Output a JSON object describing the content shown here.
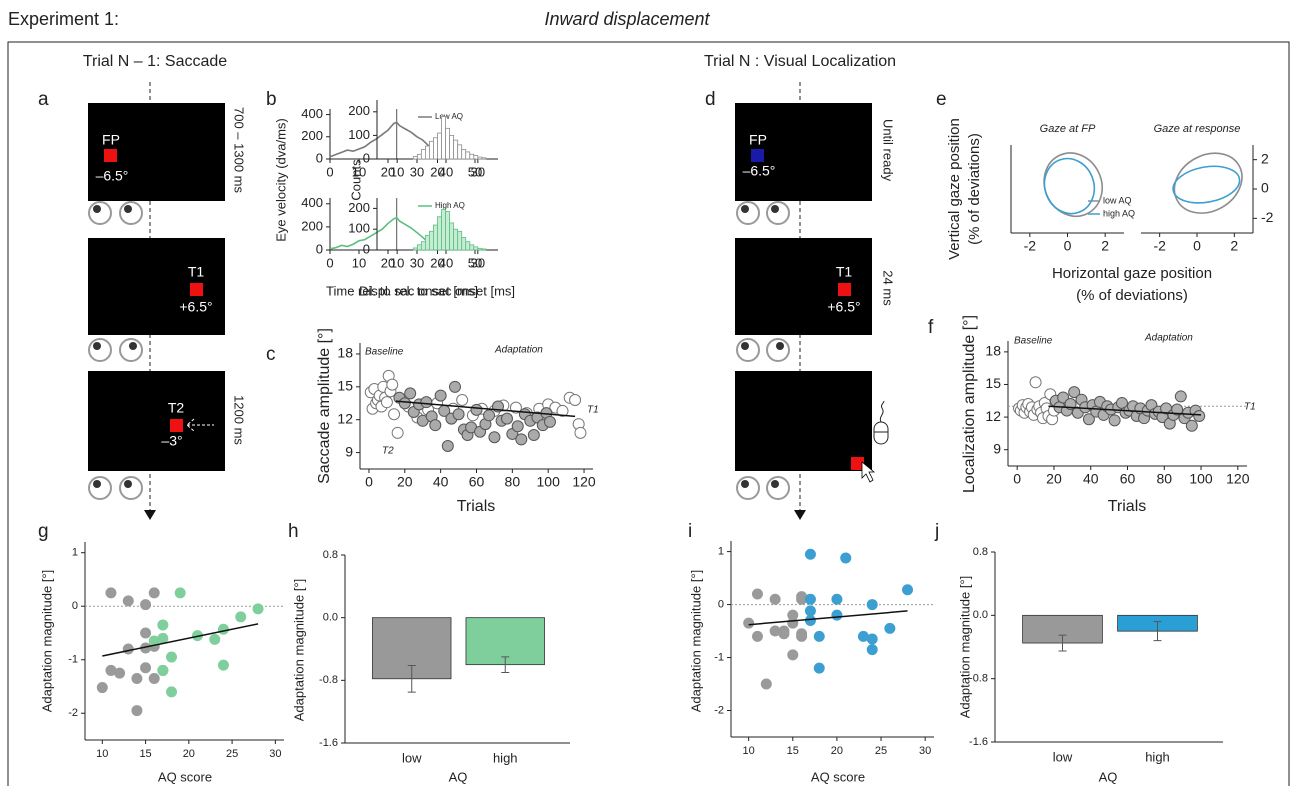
{
  "header": {
    "experiment": "Experiment 1:",
    "condition": "Inward displacement"
  },
  "trials": {
    "saccade": "Trial N – 1: Saccade",
    "localization": "Trial N : Visual Localization"
  },
  "panel_letters": [
    "a",
    "b",
    "c",
    "d",
    "e",
    "f",
    "g",
    "h",
    "i",
    "j"
  ],
  "display_a": {
    "labels": [
      "FP",
      "–6.5°",
      "T1",
      "+6.5°",
      "T2",
      "–3°"
    ],
    "timing": [
      "700 – 1300 ms",
      "1200 ms"
    ]
  },
  "display_d": {
    "labels": [
      "FP",
      "–6.5°",
      "T1",
      "+6.5°"
    ],
    "timing": [
      "Until ready",
      "24 ms"
    ]
  },
  "chart_data": [
    {
      "type": "line",
      "ylabel": "Eye velocity (dva/ms)",
      "xlim": [
        0,
        50
      ],
      "xticks": [
        0,
        10,
        20,
        30,
        40,
        50
      ],
      "ylim": [
        0,
        450
      ],
      "yticks": [
        0,
        200,
        400
      ],
      "vline": 23,
      "series": [
        {
          "name": "Low AQ",
          "color": "#7a7a7a",
          "x": [
            0,
            2,
            4,
            6,
            8,
            10,
            12,
            14,
            16,
            18,
            20,
            22,
            23,
            24,
            26,
            28,
            30,
            32,
            34,
            36,
            38,
            40
          ],
          "values": [
            20,
            40,
            60,
            80,
            70,
            90,
            110,
            150,
            180,
            220,
            260,
            320,
            330,
            300,
            270,
            240,
            200,
            170,
            120,
            80,
            40,
            20
          ]
        }
      ]
    },
    {
      "type": "line",
      "xlabel": "Time rel. to sac onset [ms]",
      "xlim": [
        0,
        50
      ],
      "xticks": [
        0,
        10,
        20,
        30,
        40,
        50
      ],
      "ylim": [
        0,
        450
      ],
      "yticks": [
        0,
        200,
        400
      ],
      "vline": 23,
      "series": [
        {
          "name": "High AQ",
          "color": "#5cbf80",
          "x": [
            0,
            2,
            4,
            6,
            8,
            10,
            12,
            14,
            16,
            18,
            20,
            22,
            23,
            24,
            26,
            28,
            30,
            32,
            34,
            36,
            38,
            40
          ],
          "values": [
            10,
            20,
            40,
            30,
            50,
            80,
            90,
            120,
            150,
            180,
            230,
            270,
            280,
            250,
            220,
            190,
            150,
            110,
            60,
            30,
            20,
            10
          ]
        }
      ]
    },
    {
      "type": "histogram",
      "ylabel": "Counts",
      "xlim": [
        5,
        35
      ],
      "xticks": [
        10,
        20,
        30
      ],
      "ylim": [
        0,
        250
      ],
      "yticks": [
        0,
        100,
        200
      ],
      "color": "#8c8c8c",
      "fill": "#ffffff",
      "bins": [
        14,
        15,
        16,
        17,
        18,
        19,
        20,
        21,
        22,
        23,
        24,
        25,
        26,
        27,
        28,
        29,
        30,
        31,
        32
      ],
      "counts": [
        10,
        20,
        40,
        55,
        75,
        90,
        110,
        180,
        130,
        100,
        80,
        60,
        40,
        30,
        20,
        15,
        8,
        5
      ]
    },
    {
      "type": "histogram",
      "xlabel": "Displ. rel. to sac onset [ms]",
      "xlim": [
        5,
        35
      ],
      "xticks": [
        10,
        20,
        30
      ],
      "ylim": [
        0,
        250
      ],
      "yticks": [
        0,
        100,
        200
      ],
      "color": "#5cbf80",
      "fill": "#c6ecd3",
      "bins": [
        14,
        15,
        16,
        17,
        18,
        19,
        20,
        21,
        22,
        23,
        24,
        25,
        26,
        27,
        28,
        29,
        30,
        31,
        32
      ],
      "counts": [
        10,
        25,
        40,
        70,
        90,
        120,
        160,
        195,
        185,
        130,
        100,
        90,
        60,
        40,
        25,
        15,
        8,
        5
      ]
    },
    {
      "type": "scatter",
      "ylabel": "Saccade amplitude [°]",
      "xlabel": "Trials",
      "xlim": [
        -5,
        125
      ],
      "xticks": [
        0,
        20,
        40,
        60,
        80,
        100,
        120
      ],
      "ylim": [
        7.5,
        19
      ],
      "yticks": [
        9,
        12,
        15,
        18
      ],
      "annotations": [
        "Baseline",
        "Adaptation",
        "T1",
        "T2"
      ],
      "fit": {
        "x": [
          15,
          115
        ],
        "values": [
          13.7,
          12.3
        ]
      },
      "series": [
        {
          "color": "#777777",
          "fill": "#ffffff",
          "x": [
            1,
            2,
            3,
            4,
            5,
            6,
            7,
            8,
            9,
            10,
            11,
            12,
            13,
            14,
            16,
            22,
            27,
            33,
            38,
            47,
            52,
            58,
            63,
            70,
            75,
            82,
            88,
            95,
            100,
            104,
            108,
            112,
            115,
            117,
            118
          ],
          "values": [
            14.5,
            13,
            14.8,
            13.5,
            13.8,
            14.2,
            13.2,
            15,
            14,
            13.6,
            16,
            14.6,
            15.2,
            12.5,
            10.8,
            13.2,
            12.2,
            12.9,
            13.5,
            13,
            13.8,
            12.4,
            13,
            12.8,
            13.3,
            13.1,
            12.6,
            13,
            13.4,
            13.1,
            12.8,
            14,
            13.8,
            11.6,
            10.8
          ]
        },
        {
          "color": "#555555",
          "fill": "#aaaaaa",
          "x": [
            17,
            20,
            23,
            25,
            28,
            30,
            32,
            35,
            37,
            40,
            42,
            44,
            46,
            48,
            50,
            53,
            55,
            57,
            60,
            62,
            65,
            67,
            70,
            72,
            74,
            77,
            80,
            83,
            85,
            87,
            90,
            92,
            94,
            97,
            99,
            101
          ],
          "values": [
            14,
            13.5,
            14.4,
            12.7,
            13.4,
            11.9,
            13.6,
            12.3,
            11.5,
            14.2,
            12.8,
            9.6,
            12.1,
            15,
            12.5,
            11.1,
            10.6,
            11.3,
            12.9,
            10.9,
            11.6,
            12.4,
            10.4,
            13.2,
            11.9,
            12.1,
            10.7,
            11.4,
            10.2,
            12.5,
            11.9,
            10.6,
            12.2,
            11.5,
            12.6,
            11.8
          ]
        }
      ]
    },
    {
      "type": "ellipse",
      "title": "Gaze at FP",
      "ylabel": [
        "Vertical gaze position",
        "(% of deviations)"
      ],
      "xlabel": [
        "Horizontal gaze position",
        "(% of deviations)"
      ],
      "xlim": [
        -3,
        3
      ],
      "xticks": [
        -2,
        0,
        2
      ],
      "ylim": [
        -3,
        3
      ],
      "yticks": [],
      "series": [
        {
          "name": "low AQ",
          "color": "#8c8c8c",
          "values": [
            0.3,
            0.3,
            1.5,
            2.2
          ],
          "angle": -25
        },
        {
          "name": "high AQ",
          "color": "#3c9fd1",
          "values": [
            0.1,
            0.2,
            1.3,
            1.9
          ],
          "angle": -20
        }
      ]
    },
    {
      "type": "ellipse",
      "title": "Gaze at response",
      "y_side": "right",
      "xlim": [
        -3,
        3
      ],
      "xticks": [
        -2,
        0,
        2
      ],
      "ylim": [
        -3,
        3
      ],
      "yticks": [
        -2,
        0,
        2
      ],
      "series": [
        {
          "color": "#8c8c8c",
          "values": [
            0.6,
            0.4,
            1.9,
            1.9
          ],
          "angle": -30
        },
        {
          "color": "#3c9fd1",
          "values": [
            0.5,
            0.3,
            1.8,
            1.2
          ],
          "angle": -10
        }
      ]
    },
    {
      "type": "scatter",
      "ylabel": "Localization amplitude [°]",
      "xlabel": "Trials",
      "xlim": [
        -5,
        125
      ],
      "xticks": [
        0,
        20,
        40,
        60,
        80,
        100,
        120
      ],
      "ylim": [
        7.5,
        19
      ],
      "yticks": [
        9,
        12,
        15,
        18
      ],
      "annotations": [
        "Baseline",
        "Adaptation",
        "T1"
      ],
      "hline": 13,
      "fit": {
        "x": [
          17,
          100
        ],
        "values": [
          13,
          12.2
        ]
      },
      "series": [
        {
          "color": "#777777",
          "fill": "#ffffff",
          "x": [
            1,
            2,
            3,
            4,
            5,
            6,
            7,
            8,
            9,
            10,
            11,
            12,
            13,
            14,
            15,
            16,
            17,
            18,
            19,
            20
          ],
          "values": [
            12.8,
            12.6,
            13.1,
            12.4,
            12.9,
            13.2,
            12.5,
            12.9,
            12.2,
            15.2,
            12.7,
            13,
            12.4,
            11.9,
            13.3,
            12.8,
            12.1,
            14.1,
            11.8,
            12.6
          ]
        },
        {
          "color": "#555555",
          "fill": "#b0b0b0",
          "x": [
            21,
            23,
            25,
            27,
            29,
            31,
            33,
            35,
            37,
            39,
            41,
            43,
            45,
            47,
            49,
            51,
            53,
            55,
            57,
            59,
            61,
            63,
            65,
            67,
            69,
            71,
            73,
            75,
            77,
            79,
            81,
            83,
            85,
            87,
            89,
            91,
            93,
            95,
            97,
            99
          ],
          "values": [
            13.5,
            12.9,
            13.8,
            12.6,
            13.2,
            14.3,
            12.4,
            13.6,
            12.9,
            11.8,
            13.1,
            12.5,
            13.4,
            12.2,
            13,
            12.7,
            11.7,
            12.9,
            13.3,
            12.4,
            12.6,
            13,
            12.1,
            12.8,
            11.9,
            12.6,
            13.1,
            12.3,
            12.5,
            12,
            12.8,
            11.4,
            12.2,
            12.7,
            13.9,
            11.9,
            12.4,
            11.2,
            12.6,
            12.1
          ]
        }
      ]
    },
    {
      "type": "scatter",
      "ylabel": "Adaptation magnitude [°]",
      "xlabel": "AQ score",
      "xlim": [
        8,
        31
      ],
      "xticks": [
        10,
        15,
        20,
        25,
        30
      ],
      "ylim": [
        -2.5,
        1.2
      ],
      "yticks": [
        -2,
        -1,
        0,
        1
      ],
      "hline": 0,
      "fit": {
        "x": [
          10,
          28
        ],
        "values": [
          -0.93,
          -0.33
        ]
      },
      "series": [
        {
          "color": "#9a9a9a",
          "fill": "#9a9a9a",
          "x": [
            10,
            11,
            11,
            12,
            13,
            13,
            14,
            14,
            15,
            15,
            15,
            15,
            16,
            16,
            16,
            17
          ],
          "values": [
            -1.52,
            0.25,
            -1.2,
            -1.25,
            0.1,
            -0.8,
            -1.35,
            -1.95,
            0.03,
            -0.5,
            -0.78,
            -1.15,
            0.25,
            -0.75,
            -1.35,
            -1.2
          ]
        },
        {
          "color": "#7fcf9c",
          "fill": "#7fcf9c",
          "x": [
            16,
            17,
            17,
            17,
            18,
            18,
            19,
            21,
            23,
            24,
            24,
            26,
            28
          ],
          "values": [
            -0.65,
            -0.35,
            -0.6,
            -1.2,
            -0.95,
            -1.6,
            0.25,
            -0.55,
            -0.62,
            -0.43,
            -1.1,
            -0.2,
            -0.05
          ]
        }
      ]
    },
    {
      "type": "bar",
      "ylabel": "Adaptation magnitude [°]",
      "xlabel": "AQ",
      "categories": [
        "low",
        "high"
      ],
      "colors": [
        "#999999",
        "#7fcf9c"
      ],
      "values": [
        -0.78,
        -0.6
      ],
      "errors": [
        0.17,
        0.1
      ],
      "ylim": [
        -1.6,
        0.8
      ],
      "yticks": [
        -1.6,
        -0.8,
        {
          "value": 0,
          "label": "0.0"
        },
        0.8
      ]
    },
    {
      "type": "scatter",
      "ylabel": "Adaptation magnitude [°]",
      "xlabel": "AQ score",
      "xlim": [
        8,
        31
      ],
      "xticks": [
        10,
        15,
        20,
        25,
        30
      ],
      "ylim": [
        -2.5,
        1.2
      ],
      "yticks": [
        -2,
        -1,
        0,
        1
      ],
      "hline": 0,
      "fit": {
        "x": [
          10,
          28
        ],
        "values": [
          -0.38,
          -0.12
        ]
      },
      "series": [
        {
          "color": "#9a9a9a",
          "fill": "#9a9a9a",
          "x": [
            10,
            11,
            11,
            12,
            13,
            13,
            14,
            14,
            15,
            15,
            15,
            16,
            16,
            16,
            16
          ],
          "values": [
            -0.35,
            0.2,
            -0.6,
            -1.5,
            -0.5,
            0.1,
            -0.5,
            -0.55,
            -0.95,
            -0.35,
            -0.2,
            0.15,
            0.1,
            -0.55,
            -0.6
          ]
        },
        {
          "color": "#3c9fd1",
          "fill": "#3c9fd1",
          "x": [
            17,
            17,
            17,
            17,
            18,
            18,
            20,
            20,
            21,
            23,
            24,
            24,
            24,
            26,
            28
          ],
          "values": [
            0.95,
            -0.12,
            0.1,
            -0.3,
            -0.6,
            -1.2,
            -0.2,
            0.1,
            0.88,
            -0.6,
            0,
            -0.65,
            -0.85,
            -0.45,
            0.28
          ]
        }
      ]
    },
    {
      "type": "bar",
      "ylabel": "Adaptation magnitude [°]",
      "xlabel": "AQ",
      "categories": [
        "low",
        "high"
      ],
      "colors": [
        "#999999",
        "#2a9fd6"
      ],
      "values": [
        -0.35,
        -0.2
      ],
      "errors": [
        0.1,
        0.12
      ],
      "ylim": [
        -1.6,
        0.8
      ],
      "yticks": [
        -1.6,
        -0.8,
        {
          "value": 0,
          "label": "0.0"
        },
        0.8
      ]
    }
  ]
}
